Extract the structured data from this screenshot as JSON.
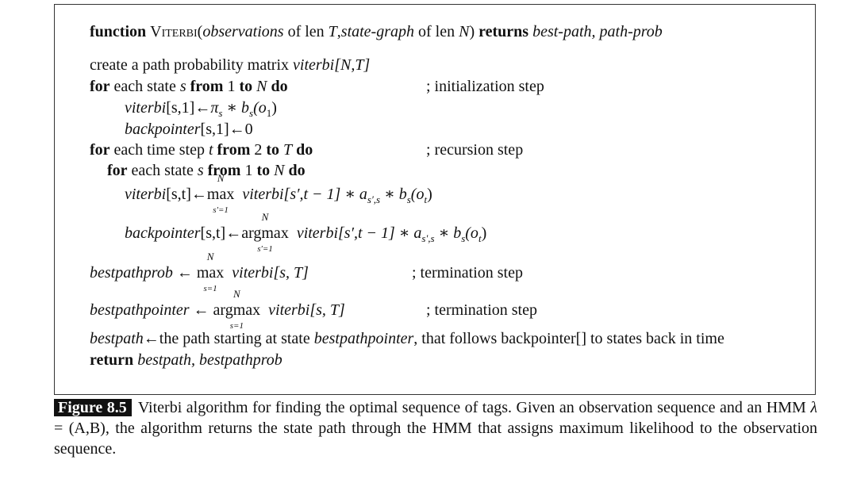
{
  "algorithm": {
    "header": {
      "kw_function": "function",
      "name": "Viterbi",
      "args_open": "(",
      "obs": "observations",
      "of_len1": " of len ",
      "T": "T",
      "comma": ",",
      "state_graph": "state-graph",
      "of_len2": " of len ",
      "N": "N",
      "args_close": ") ",
      "kw_returns": "returns",
      "ret": " best-path, path-prob"
    },
    "line_create": {
      "text": "create a path probability matrix ",
      "var": "viterbi[N,T]"
    },
    "for_init": {
      "kw_for": "for",
      "mid1": " each state ",
      "s": "s",
      "kw_from": " from",
      "mid2": " 1 ",
      "kw_to": "to",
      "N": " N",
      "kw_do": " do"
    },
    "comment_init": "; initialization step",
    "init_viterbi": {
      "lhs": "viterbi",
      "idx": "[s,1]",
      "arrow": "←",
      "pi": "π",
      "pi_sub": "s",
      "star": " ∗ ",
      "b": "b",
      "b_sub": "s",
      "arg": "(o",
      "arg_sub": "1",
      "close": ")"
    },
    "init_back": {
      "lhs": "backpointer",
      "idx": "[s,1]",
      "arrow": "←",
      "rhs": "0"
    },
    "for_time": {
      "kw_for": "for",
      "mid1": " each time step ",
      "t": "t",
      "kw_from": " from",
      "mid2": " 2 ",
      "kw_to": "to",
      "T": " T",
      "kw_do": " do"
    },
    "comment_rec": "; recursion step",
    "for_state2": {
      "kw_for": "for",
      "mid1": " each state ",
      "s": "s",
      "kw_from": " from",
      "mid2": " 1 ",
      "kw_to": "to",
      "N": " N",
      "kw_do": " do"
    },
    "rec_viterbi": {
      "lhs": "viterbi",
      "idx": "[s,t]",
      "arrow": "←",
      "op": "max",
      "op_sup": "N",
      "op_sub": "s′=1",
      "term": "viterbi[s′,t − 1]",
      "star1": " ∗ ",
      "a": "a",
      "a_sub": "s′,s",
      "star2": " ∗ ",
      "b": "b",
      "b_sub": "s",
      "arg": "(o",
      "arg_sub": "t",
      "close": ")"
    },
    "rec_back": {
      "lhs": "backpointer",
      "idx": "[s,t]",
      "arrow": "←",
      "op": "argmax",
      "op_sup": "N",
      "op_sub": "s′=1",
      "term": "viterbi[s′,t − 1]",
      "star1": " ∗ ",
      "a": "a",
      "a_sub": "s′,s",
      "star2": " ∗ ",
      "b": "b",
      "b_sub": "s",
      "arg": "(o",
      "arg_sub": "t",
      "close": ")"
    },
    "term_prob": {
      "lhs": "bestpathprob",
      "arrow": " ← ",
      "op": "max",
      "op_sup": "N",
      "op_sub": "s=1",
      "term": "viterbi[s, T]"
    },
    "comment_term1": "; termination step",
    "term_pointer": {
      "lhs": "bestpathpointer",
      "arrow": " ← ",
      "op": "argmax",
      "op_sup": "N",
      "op_sub": "s=1",
      "term": "viterbi[s, T]"
    },
    "comment_term2": "; termination step",
    "best_path": {
      "lhs": "bestpath",
      "arrow": "←",
      "text1": "the path starting at state ",
      "var": "bestpathpointer",
      "text2": ", that follows backpointer[] to states back in time"
    },
    "ret_line": {
      "kw_return": "return",
      "vals": " bestpath, bestpathprob"
    }
  },
  "caption": {
    "label": "Figure 8.5",
    "text1": "Viterbi algorithm for finding the optimal sequence of tags. Given an observation sequence and an HMM ",
    "lambda": "λ",
    "text2": " = (A,B), the algorithm returns the state path through the HMM that assigns maximum likelihood to the observation sequence."
  }
}
